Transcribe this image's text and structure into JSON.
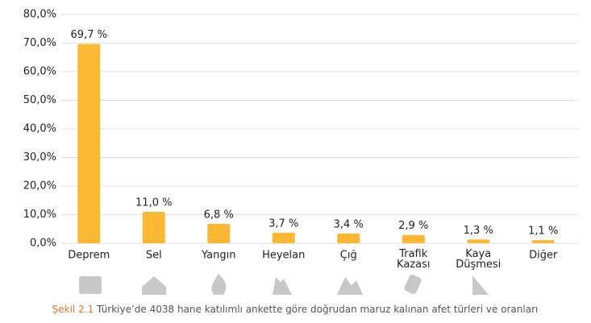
{
  "chart_data": {
    "type": "bar",
    "categories": [
      "Deprem",
      "Sel",
      "Yangın",
      "Heyelan",
      "Çığ",
      "Trafik Kazası",
      "Kaya Düşmesi",
      "Diğer"
    ],
    "values": [
      69.7,
      11.0,
      6.8,
      3.7,
      3.4,
      2.9,
      1.3,
      1.1
    ],
    "value_labels": [
      "69,7 %",
      "11,0 %",
      "6,8 %",
      "3,7 %",
      "3,4 %",
      "2,9 %",
      "1,3 %",
      "1,1 %"
    ],
    "color": "#fbb832",
    "ylim": [
      0,
      80
    ],
    "yticks": [
      {
        "value": 0,
        "label": "0,0%"
      },
      {
        "value": 10,
        "label": "10,0%"
      },
      {
        "value": 20,
        "label": "20,0%"
      },
      {
        "value": 30,
        "label": "30,0%"
      },
      {
        "value": 40,
        "label": "40,0%"
      },
      {
        "value": 50,
        "label": "50,0%"
      },
      {
        "value": 60,
        "label": "60,0%"
      },
      {
        "value": 70,
        "label": "70,0%"
      },
      {
        "value": 80,
        "label": "80,0%"
      }
    ],
    "grid": true,
    "caption_label": "Şekil 2.1",
    "caption": "Türkiye’de 4038 hane katılımlı ankette göre doğrudan maruz kalınan afet türleri ve oranları"
  }
}
